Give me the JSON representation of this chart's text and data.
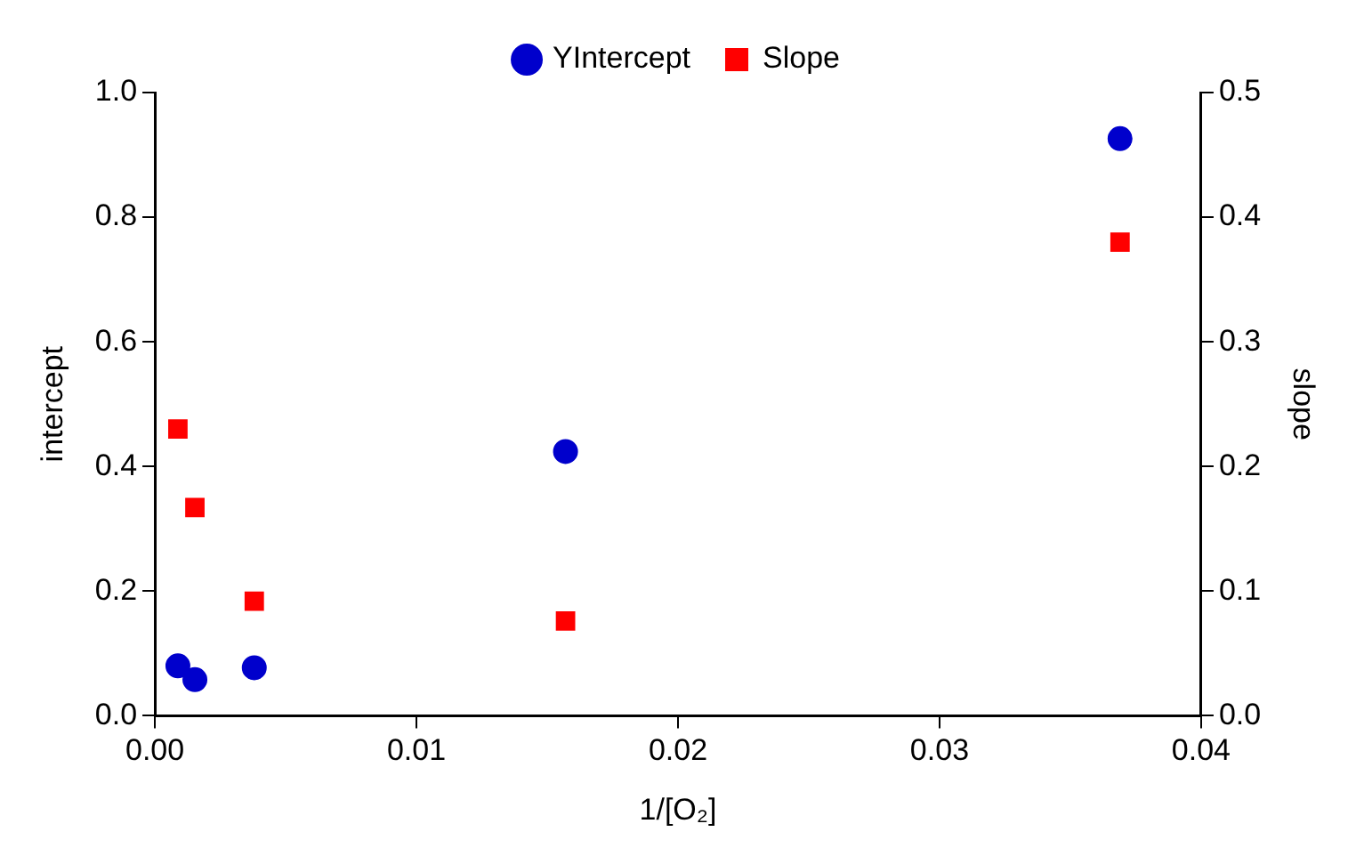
{
  "chart_data": {
    "type": "scatter",
    "xlabel": "1/[O₂]",
    "ylabel": "intercept",
    "y2label": "slope",
    "series": [
      {
        "name": "YIntercept",
        "color": "#0000cc",
        "marker": "circle",
        "x": [
          0.00088,
          0.00153,
          0.0038,
          0.0157,
          0.0369
        ],
        "values": [
          0.08,
          0.058,
          0.077,
          0.424,
          0.926
        ]
      },
      {
        "name": "Slope",
        "color": "#ff0000",
        "marker": "square",
        "axis": "y2",
        "x": [
          0.00088,
          0.00153,
          0.0038,
          0.0157,
          0.0369
        ],
        "values": [
          0.23,
          0.167,
          0.092,
          0.076,
          0.38
        ]
      }
    ],
    "xlim": [
      0,
      0.04
    ],
    "xticks": [
      {
        "value": 0,
        "label": "0.00"
      },
      0.01,
      0.02,
      0.03,
      0.04
    ],
    "ylim": [
      0,
      1
    ],
    "yticks": [
      {
        "value": 0,
        "label": "0.0"
      },
      0.2,
      0.4,
      0.6,
      0.8,
      {
        "value": 1,
        "label": "1.0"
      }
    ],
    "y2lim": [
      0,
      0.5
    ],
    "y2ticks": [
      {
        "value": 0,
        "label": "0.0"
      },
      0.1,
      0.2,
      0.3,
      0.4,
      0.5
    ],
    "legend": "top",
    "grid": false
  }
}
